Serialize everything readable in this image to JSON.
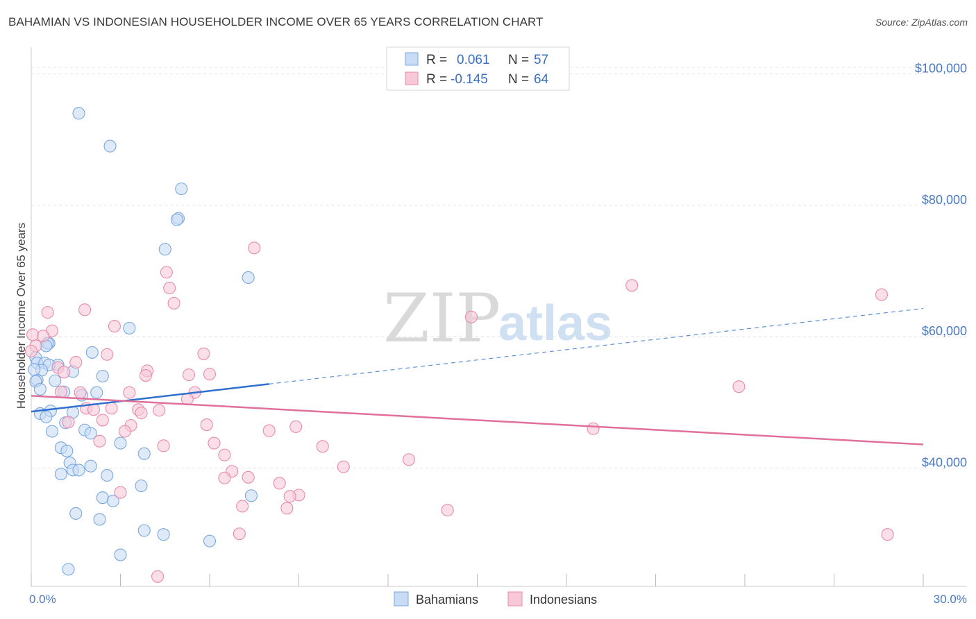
{
  "title": "BAHAMIAN VS INDONESIAN HOUSEHOLDER INCOME OVER 65 YEARS CORRELATION CHART",
  "source": "Source: ZipAtlas.com",
  "watermark": {
    "zip": "ZIP",
    "atlas": "atlas"
  },
  "chart_data": {
    "type": "scatter",
    "title": "BAHAMIAN VS INDONESIAN HOUSEHOLDER INCOME OVER 65 YEARS CORRELATION CHART",
    "xlabel": "",
    "ylabel": "Householder Income Over 65 years",
    "xlim": [
      0,
      30
    ],
    "ylim": [
      22000,
      103000
    ],
    "x_ticks": [
      0,
      3,
      6,
      9,
      12,
      15,
      18,
      21,
      24,
      27,
      30
    ],
    "x_tick_labels": {
      "0": "0.0%",
      "30": "30.0%"
    },
    "y_ticks": [
      40000,
      60000,
      80000,
      100000
    ],
    "y_tick_labels": [
      "$40,000",
      "$60,000",
      "$80,000",
      "$100,000"
    ],
    "grid": true,
    "legend_placement": "top-center",
    "series": [
      {
        "name": "Bahamians",
        "color": "#7aa7e0",
        "fill": "#c9dcf5",
        "r": "0.061",
        "n": "57",
        "trend": {
          "x": [
            0,
            8
          ],
          "y": [
            48600,
            52800
          ],
          "extend_to": 30,
          "extend_y": 64300
        },
        "points": [
          [
            1.6,
            94000
          ],
          [
            2.65,
            89000
          ],
          [
            5.05,
            82500
          ],
          [
            4.95,
            78000
          ],
          [
            4.9,
            77800
          ],
          [
            4.5,
            73300
          ],
          [
            7.3,
            69000
          ],
          [
            3.3,
            61300
          ],
          [
            0.6,
            59000
          ],
          [
            0.55,
            59000
          ],
          [
            2.05,
            57600
          ],
          [
            0.15,
            56800
          ],
          [
            0.2,
            56000
          ],
          [
            0.45,
            56000
          ],
          [
            0.9,
            55700
          ],
          [
            0.6,
            55700
          ],
          [
            0.35,
            54900
          ],
          [
            1.4,
            54700
          ],
          [
            2.4,
            54000
          ],
          [
            0.2,
            53400
          ],
          [
            0.8,
            53300
          ],
          [
            0.15,
            53200
          ],
          [
            1.1,
            51600
          ],
          [
            2.2,
            51500
          ],
          [
            1.7,
            51100
          ],
          [
            0.3,
            48300
          ],
          [
            1.4,
            48500
          ],
          [
            0.65,
            48700
          ],
          [
            0.5,
            47800
          ],
          [
            1.15,
            46900
          ],
          [
            1.8,
            45800
          ],
          [
            0.7,
            45600
          ],
          [
            2.0,
            45300
          ],
          [
            3.0,
            43800
          ],
          [
            1.0,
            43100
          ],
          [
            1.2,
            42600
          ],
          [
            3.8,
            42200
          ],
          [
            1.3,
            40800
          ],
          [
            2.0,
            40300
          ],
          [
            1.4,
            39700
          ],
          [
            1.6,
            39700
          ],
          [
            1.0,
            39100
          ],
          [
            2.55,
            38900
          ],
          [
            3.7,
            37300
          ],
          [
            7.4,
            35800
          ],
          [
            2.4,
            35500
          ],
          [
            2.75,
            35000
          ],
          [
            1.5,
            33100
          ],
          [
            2.3,
            32200
          ],
          [
            3.8,
            30500
          ],
          [
            4.45,
            29900
          ],
          [
            6.0,
            28900
          ],
          [
            3.0,
            26800
          ],
          [
            1.25,
            24600
          ],
          [
            0.5,
            58600
          ],
          [
            0.1,
            55000
          ],
          [
            0.3,
            52000
          ]
        ]
      },
      {
        "name": "Indonesians",
        "color": "#e98aaa",
        "fill": "#f7c9d8",
        "r": "-0.145",
        "n": "64",
        "trend": {
          "x": [
            0,
            30
          ],
          "y": [
            51000,
            43600
          ]
        },
        "points": [
          [
            7.5,
            73500
          ],
          [
            4.55,
            69800
          ],
          [
            4.65,
            67400
          ],
          [
            20.2,
            67800
          ],
          [
            28.6,
            66400
          ],
          [
            4.8,
            65100
          ],
          [
            1.8,
            64100
          ],
          [
            0.55,
            63700
          ],
          [
            14.8,
            63000
          ],
          [
            2.8,
            61600
          ],
          [
            0.7,
            60900
          ],
          [
            0.05,
            60300
          ],
          [
            0.4,
            60100
          ],
          [
            0.15,
            58600
          ],
          [
            2.55,
            57300
          ],
          [
            5.8,
            57400
          ],
          [
            1.5,
            56100
          ],
          [
            0.9,
            55300
          ],
          [
            1.1,
            54600
          ],
          [
            3.9,
            54800
          ],
          [
            5.3,
            54200
          ],
          [
            6.0,
            54300
          ],
          [
            3.85,
            54100
          ],
          [
            1.0,
            51600
          ],
          [
            1.65,
            51500
          ],
          [
            3.3,
            51500
          ],
          [
            5.5,
            51500
          ],
          [
            5.25,
            50500
          ],
          [
            23.8,
            52400
          ],
          [
            1.85,
            49100
          ],
          [
            2.1,
            48900
          ],
          [
            2.7,
            49100
          ],
          [
            3.6,
            48900
          ],
          [
            3.7,
            48400
          ],
          [
            4.3,
            48800
          ],
          [
            2.4,
            47300
          ],
          [
            1.25,
            47000
          ],
          [
            3.35,
            46500
          ],
          [
            5.9,
            46600
          ],
          [
            8.0,
            45700
          ],
          [
            8.9,
            46300
          ],
          [
            18.9,
            46000
          ],
          [
            3.15,
            45600
          ],
          [
            2.3,
            44100
          ],
          [
            6.15,
            43800
          ],
          [
            4.45,
            43400
          ],
          [
            9.8,
            43300
          ],
          [
            6.5,
            42000
          ],
          [
            12.7,
            41300
          ],
          [
            10.5,
            40200
          ],
          [
            6.75,
            39500
          ],
          [
            7.3,
            38600
          ],
          [
            6.5,
            38500
          ],
          [
            8.35,
            37700
          ],
          [
            3.0,
            36300
          ],
          [
            9.0,
            35900
          ],
          [
            8.7,
            35700
          ],
          [
            7.1,
            34200
          ],
          [
            8.6,
            33900
          ],
          [
            14.0,
            33600
          ],
          [
            7.0,
            30000
          ],
          [
            28.8,
            29900
          ],
          [
            4.25,
            23500
          ],
          [
            0.0,
            57800
          ]
        ]
      }
    ]
  },
  "legend": {
    "rows": [
      {
        "r_label": "R =",
        "r_value": "0.061",
        "n_label": "N =",
        "n_value": "57"
      },
      {
        "r_label": "R =",
        "r_value": "-0.145",
        "n_label": "N =",
        "n_value": "64"
      }
    ]
  },
  "bottom_legend": [
    "Bahamians",
    "Indonesians"
  ]
}
